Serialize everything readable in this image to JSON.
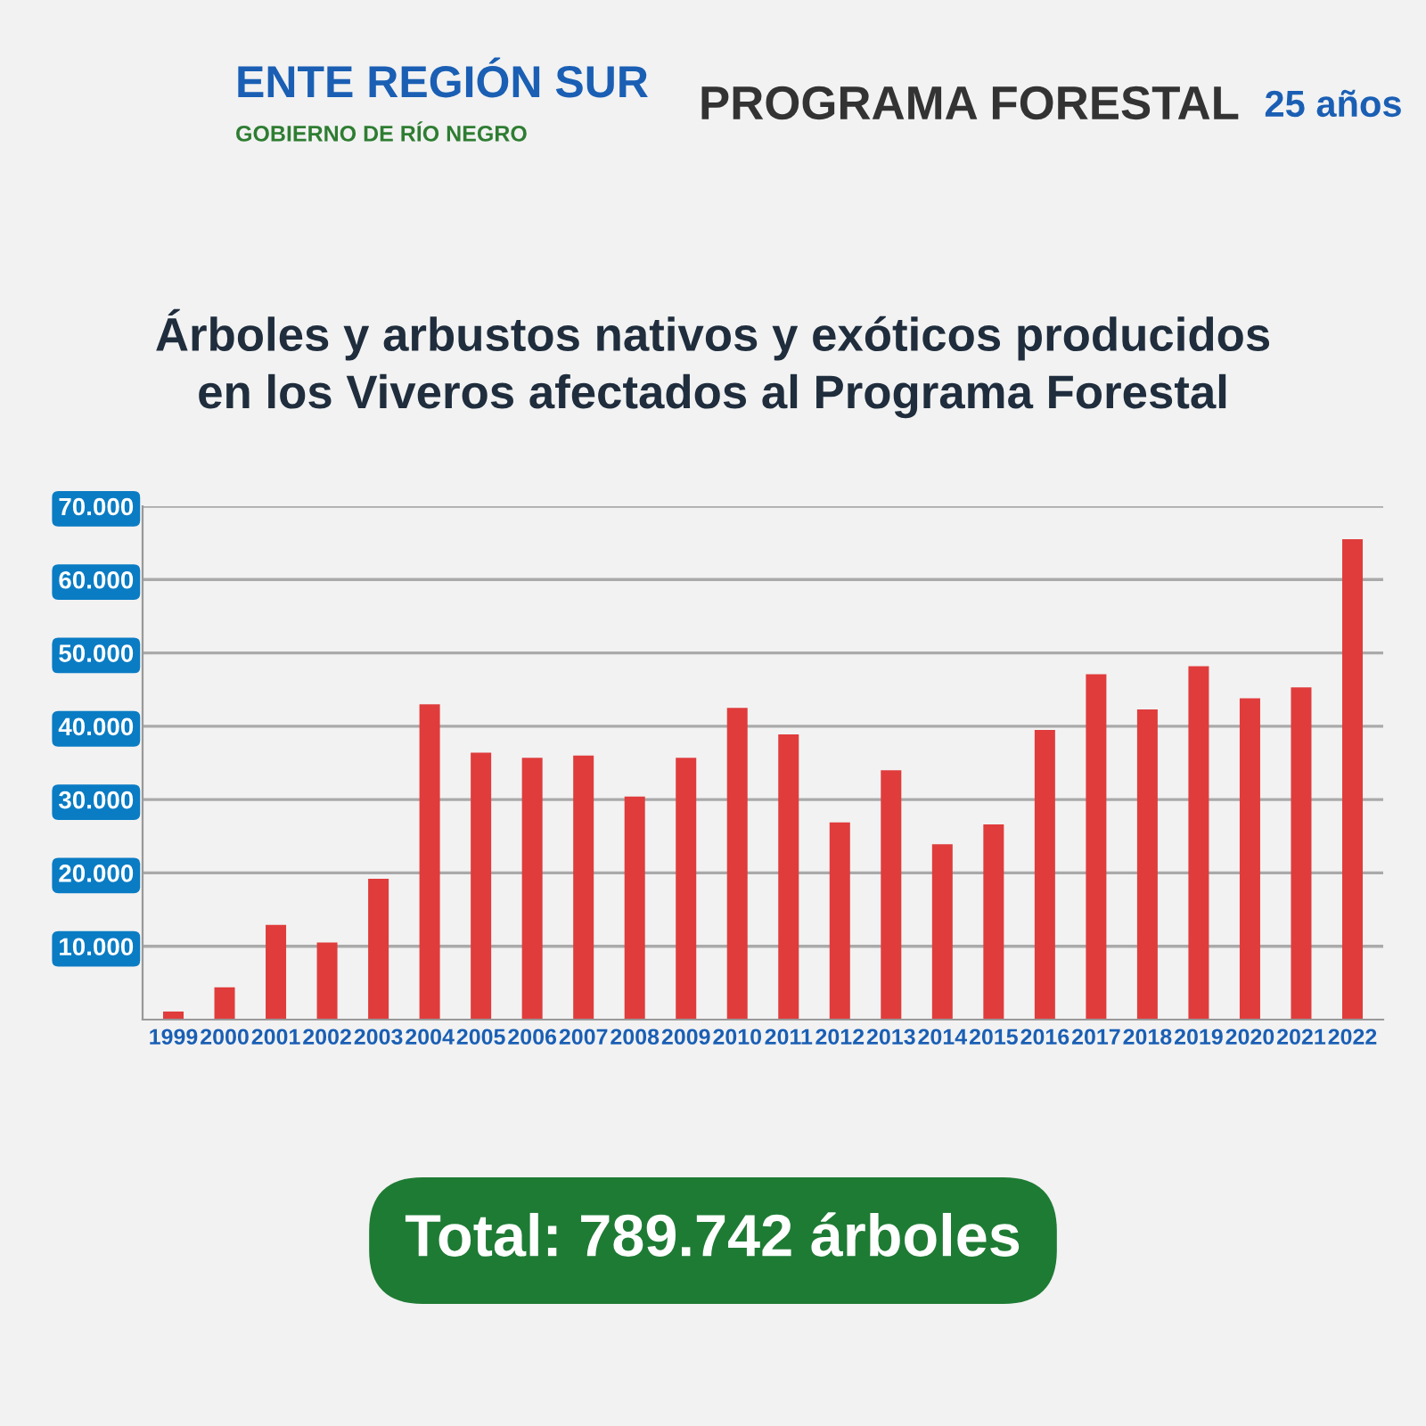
{
  "chart_data": {
    "type": "bar",
    "title": "Árboles y arbustos nativos y exóticos producidos\nen los Viveros afectados al Programa Forestal",
    "categories": [
      "1999",
      "2000",
      "2001",
      "2002",
      "2003",
      "2004",
      "2005",
      "2006",
      "2007",
      "2008",
      "2009",
      "2010",
      "2011",
      "2012",
      "2013",
      "2014",
      "2015",
      "2016",
      "2017",
      "2018",
      "2019",
      "2020",
      "2021",
      "2022"
    ],
    "values": [
      1100,
      4400,
      12900,
      10500,
      19200,
      43000,
      36400,
      35700,
      36000,
      30400,
      35700,
      42500,
      38900,
      26900,
      34000,
      23900,
      26600,
      39500,
      47100,
      42300,
      48200,
      43800,
      45300,
      65500
    ],
    "color": "#e03c3c",
    "ylim": [
      0,
      70000
    ],
    "yticks": [
      {
        "value": 10000,
        "label": "10.000"
      },
      {
        "value": 20000,
        "label": "20.000"
      },
      {
        "value": 30000,
        "label": "30.000"
      },
      {
        "value": 40000,
        "label": "40.000"
      },
      {
        "value": 50000,
        "label": "50.000"
      },
      {
        "value": 60000,
        "label": "60.000"
      },
      {
        "value": 70000,
        "label": "70.000"
      }
    ],
    "grid": "y",
    "annotations": [
      "ENTE REGIÓN SUR",
      "GOBIERNO DE RÍO NEGRO",
      "PROGRAMA FORESTAL",
      "25 años",
      "Total: 789.742 árboles"
    ]
  }
}
